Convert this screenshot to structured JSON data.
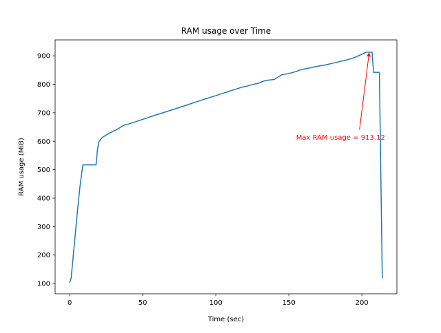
{
  "chart_data": {
    "type": "line",
    "title": "RAM usage over Time",
    "xlabel": "Time (sec)",
    "ylabel": "RAM usage (MiB)",
    "xlim": [
      -10,
      224
    ],
    "ylim": [
      64,
      956
    ],
    "xticks": [
      0,
      50,
      100,
      150,
      200
    ],
    "yticks": [
      100,
      200,
      300,
      400,
      500,
      600,
      700,
      800,
      900
    ],
    "grid": false,
    "legend": "none",
    "line_color": "#1f77b4",
    "series": [
      {
        "x": [
          0,
          1,
          3,
          5,
          7,
          8,
          9,
          10,
          14,
          18,
          19,
          20,
          22,
          25,
          30,
          32,
          35,
          38,
          40,
          50,
          60,
          70,
          80,
          90,
          100,
          110,
          118,
          121,
          125,
          130,
          132,
          135,
          140,
          145,
          150,
          155,
          158,
          162,
          165,
          168,
          175,
          180,
          185,
          190,
          195,
          200,
          203,
          205,
          207,
          208,
          210,
          212,
          214
        ],
        "y": [
          103,
          120,
          230,
          340,
          440,
          480,
          517,
          517,
          517,
          517,
          570,
          598,
          612,
          622,
          636,
          640,
          650,
          658,
          660,
          677,
          694,
          710,
          727,
          744,
          760,
          777,
          790,
          793,
          799,
          805,
          810,
          814,
          817,
          833,
          838,
          845,
          851,
          855,
          858,
          862,
          868,
          874,
          880,
          886,
          894,
          906,
          913,
          913.12,
          913,
          842,
          842,
          842,
          118
        ]
      }
    ],
    "annotations": [
      {
        "text": "Max RAM usage = 913.12",
        "color": "#ff0000",
        "xy": [
          205,
          913.12
        ],
        "xytext": [
          155,
          614
        ]
      }
    ]
  }
}
